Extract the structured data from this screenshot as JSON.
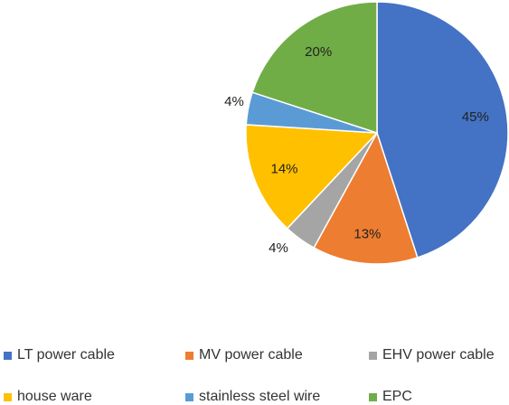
{
  "chart_data": {
    "type": "pie",
    "title": "",
    "series": [
      {
        "name": "LT power cable",
        "value": 45,
        "label": "45%",
        "color": "#4472C4"
      },
      {
        "name": "MV power cable",
        "value": 13,
        "label": "13%",
        "color": "#ED7D31"
      },
      {
        "name": "EHV power cable",
        "value": 4,
        "label": "4%",
        "color": "#A5A5A5"
      },
      {
        "name": "house ware",
        "value": 14,
        "label": "14%",
        "color": "#FFC000"
      },
      {
        "name": "stainless steel wire",
        "value": 4,
        "label": "4%",
        "color": "#5B9BD5"
      },
      {
        "name": "EPC",
        "value": 20,
        "label": "20%",
        "color": "#70AD47"
      }
    ],
    "legend": "bottom"
  }
}
